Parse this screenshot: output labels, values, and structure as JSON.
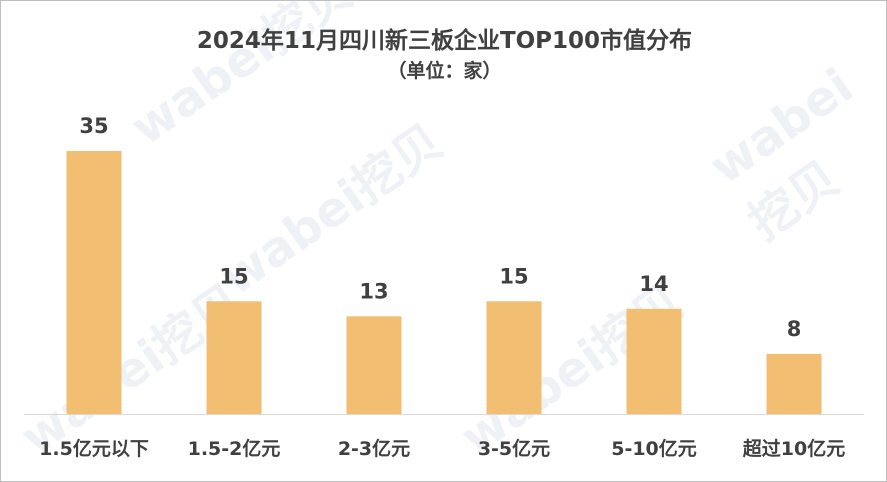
{
  "title": "2024年11月四川新三板企业TOP100市值分布",
  "subtitle": "（单位：家）",
  "watermark": "wabei挖贝",
  "colors": {
    "bar": "#F2BE72",
    "text": "#404040",
    "axis": "#D9D9D9"
  },
  "chart_data": {
    "type": "bar",
    "title": "2024年11月四川新三板企业TOP100市值分布",
    "subtitle": "（单位：家）",
    "categories": [
      "1.5亿元以下",
      "1.5-2亿元",
      "2-3亿元",
      "3-5亿元",
      "5-10亿元",
      "超过10亿元"
    ],
    "values": [
      35,
      15,
      13,
      15,
      14,
      8
    ],
    "data_labels": [
      "35",
      "15",
      "13",
      "15",
      "14",
      "8"
    ],
    "ylim": [
      0,
      35
    ],
    "grid": false,
    "legend": "none"
  }
}
